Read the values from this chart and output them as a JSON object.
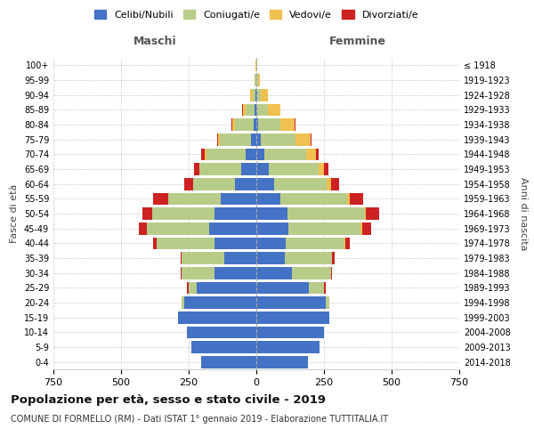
{
  "age_groups": [
    "0-4",
    "5-9",
    "10-14",
    "15-19",
    "20-24",
    "25-29",
    "30-34",
    "35-39",
    "40-44",
    "45-49",
    "50-54",
    "55-59",
    "60-64",
    "65-69",
    "70-74",
    "75-79",
    "80-84",
    "85-89",
    "90-94",
    "95-99",
    "100+"
  ],
  "birth_years": [
    "2014-2018",
    "2009-2013",
    "2004-2008",
    "1999-2003",
    "1994-1998",
    "1989-1993",
    "1984-1988",
    "1979-1983",
    "1974-1978",
    "1969-1973",
    "1964-1968",
    "1959-1963",
    "1954-1958",
    "1949-1953",
    "1944-1948",
    "1939-1943",
    "1934-1938",
    "1929-1933",
    "1924-1928",
    "1919-1923",
    "≤ 1918"
  ],
  "males": {
    "celibe": [
      205,
      240,
      255,
      290,
      265,
      220,
      155,
      120,
      155,
      175,
      155,
      130,
      80,
      55,
      40,
      20,
      10,
      5,
      2,
      1,
      0
    ],
    "coniugato": [
      0,
      0,
      0,
      0,
      10,
      30,
      120,
      155,
      215,
      230,
      230,
      195,
      155,
      155,
      145,
      115,
      70,
      35,
      12,
      4,
      1
    ],
    "vedovo": [
      0,
      0,
      0,
      0,
      0,
      0,
      0,
      0,
      0,
      0,
      0,
      0,
      0,
      0,
      5,
      5,
      10,
      10,
      8,
      3,
      1
    ],
    "divorziato": [
      0,
      0,
      0,
      0,
      0,
      5,
      5,
      5,
      10,
      30,
      35,
      55,
      30,
      20,
      15,
      5,
      3,
      1,
      0,
      0,
      0
    ]
  },
  "females": {
    "nubile": [
      190,
      235,
      250,
      270,
      255,
      195,
      130,
      105,
      110,
      120,
      115,
      90,
      65,
      45,
      30,
      15,
      8,
      4,
      2,
      1,
      0
    ],
    "coniugata": [
      0,
      0,
      0,
      0,
      15,
      55,
      145,
      175,
      215,
      265,
      285,
      245,
      195,
      185,
      155,
      130,
      80,
      40,
      15,
      5,
      2
    ],
    "vedova": [
      0,
      0,
      0,
      0,
      0,
      0,
      0,
      0,
      5,
      5,
      5,
      10,
      15,
      20,
      35,
      55,
      55,
      45,
      25,
      8,
      2
    ],
    "divorziata": [
      0,
      0,
      0,
      0,
      0,
      5,
      5,
      10,
      15,
      35,
      50,
      50,
      30,
      15,
      10,
      5,
      2,
      1,
      0,
      0,
      0
    ]
  },
  "colors": {
    "celibe": "#4472c4",
    "coniugato": "#b8cc8a",
    "vedovo": "#f0c050",
    "divorziato": "#cc2222"
  },
  "xlim": 750,
  "title": "Popolazione per età, sesso e stato civile - 2019",
  "subtitle": "COMUNE DI FORMELLO (RM) - Dati ISTAT 1° gennaio 2019 - Elaborazione TUTTITALIA.IT",
  "ylabel_left": "Fasce di età",
  "ylabel_right": "Anni di nascita",
  "xlabel_left": "Maschi",
  "xlabel_right": "Femmine",
  "legend_labels": [
    "Celibi/Nubili",
    "Coniugati/e",
    "Vedovi/e",
    "Divorziati/e"
  ]
}
